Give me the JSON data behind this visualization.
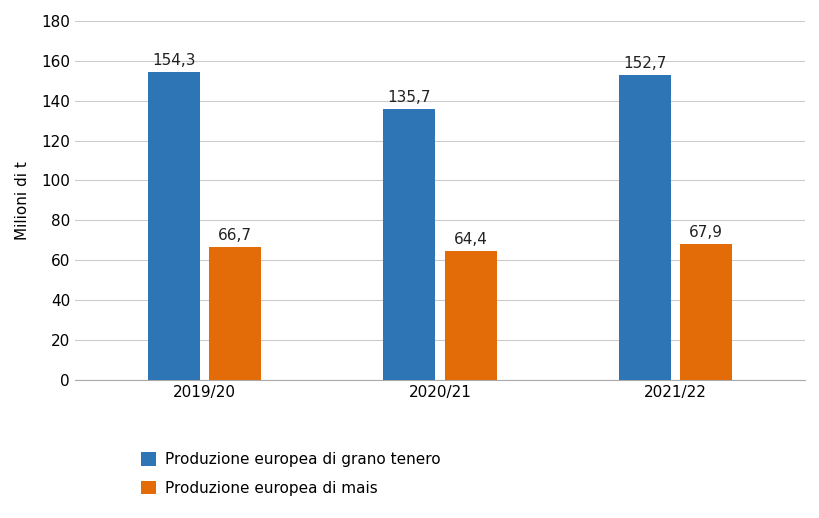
{
  "categories": [
    "2019/20",
    "2020/21",
    "2021/22"
  ],
  "series": [
    {
      "label": "Produzione europea di grano tenero",
      "values": [
        154.3,
        135.7,
        152.7
      ],
      "color": "#2E75B6"
    },
    {
      "label": "Produzione europea di mais",
      "values": [
        66.7,
        64.4,
        67.9
      ],
      "color": "#E36C09"
    }
  ],
  "ylabel": "Milioni di t",
  "ylim": [
    0,
    180
  ],
  "yticks": [
    0,
    20,
    40,
    60,
    80,
    100,
    120,
    140,
    160,
    180
  ],
  "bar_width": 0.22,
  "bar_gap": 0.04,
  "label_fontsize": 11,
  "tick_fontsize": 11,
  "ylabel_fontsize": 11,
  "legend_fontsize": 11,
  "annotation_fontsize": 11,
  "background_color": "#ffffff",
  "grid_color": "#cccccc"
}
